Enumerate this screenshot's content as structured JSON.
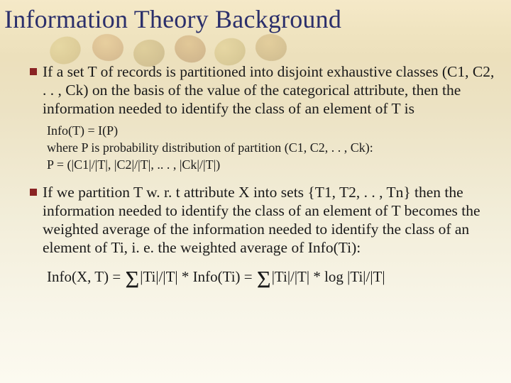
{
  "slide": {
    "title": "Information Theory Background",
    "title_color": "#2b2f6b",
    "title_fontsize": 36,
    "bullet_marker_color": "#8a2323",
    "body_color": "#1a1a1a",
    "body_fontsize": 21.5,
    "sub_fontsize": 18,
    "formula_fontsize": 21,
    "background_gradient": [
      "#f5e9c8",
      "#f0e4c0",
      "#ece0bc",
      "#ece2c3",
      "#f2edd8",
      "#f8f5e8",
      "#fcfaf0"
    ],
    "bullets": [
      {
        "text": "If a set T of records is partitioned into disjoint exhaustive classes (C1, C2, . . , Ck) on the basis of the value of the categorical attribute, then the information needed to identify the class of an element of T is",
        "sub": [
          "Info(T) = I(P)",
          "where P is probability distribution of partition (C1, C2, . . , Ck):",
          "P = (|C1|/|T|, |C2|/|T|, .. . , |Ck|/|T|)"
        ]
      },
      {
        "text": "If we partition T w. r. t attribute X into sets {T1, T2, . . , Tn} then the information needed to identify the class of an element of T becomes the weighted average of the information needed to identify the class of an element of Ti, i. e. the weighted average of Info(Ti):"
      }
    ],
    "formula": {
      "lhs": "Info(X, T) = ",
      "sigma": "Σ",
      "mid1": "|Ti|/|T| * Info(Ti) = ",
      "mid2": "|Ti|/|T| * log |Ti|/|T|"
    }
  }
}
